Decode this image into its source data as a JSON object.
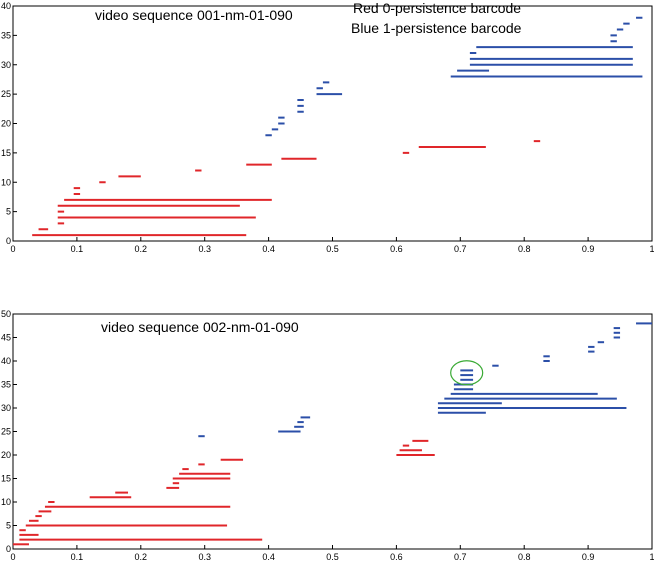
{
  "chart_data": [
    {
      "type": "barcode",
      "title": "video sequence 001-nm-01-090",
      "legend": [
        "Red  0-persistence barcode",
        "Blue 1-persistence barcode"
      ],
      "xlim": [
        0,
        1
      ],
      "ylim": [
        0,
        40
      ],
      "xticks": [
        0,
        0.1,
        0.2,
        0.3,
        0.4,
        0.5,
        0.6,
        0.7,
        0.8,
        0.9,
        1
      ],
      "yticks": [
        0,
        5,
        10,
        15,
        20,
        25,
        30,
        35,
        40
      ],
      "series": [
        {
          "name": "0-persistence",
          "color": "#e0262a",
          "bars": [
            {
              "y": 1,
              "start": 0.03,
              "end": 0.365
            },
            {
              "y": 2,
              "start": 0.04,
              "end": 0.055
            },
            {
              "y": 3,
              "start": 0.07,
              "end": 0.08
            },
            {
              "y": 4,
              "start": 0.07,
              "end": 0.38
            },
            {
              "y": 5,
              "start": 0.07,
              "end": 0.08
            },
            {
              "y": 6,
              "start": 0.07,
              "end": 0.355
            },
            {
              "y": 7,
              "start": 0.08,
              "end": 0.405
            },
            {
              "y": 8,
              "start": 0.095,
              "end": 0.105
            },
            {
              "y": 9,
              "start": 0.095,
              "end": 0.105
            },
            {
              "y": 10,
              "start": 0.135,
              "end": 0.145
            },
            {
              "y": 11,
              "start": 0.165,
              "end": 0.2
            },
            {
              "y": 12,
              "start": 0.285,
              "end": 0.295
            },
            {
              "y": 13,
              "start": 0.365,
              "end": 0.405
            },
            {
              "y": 14,
              "start": 0.42,
              "end": 0.475
            },
            {
              "y": 15,
              "start": 0.61,
              "end": 0.62
            },
            {
              "y": 16,
              "start": 0.635,
              "end": 0.74
            },
            {
              "y": 17,
              "start": 0.815,
              "end": 0.825
            }
          ]
        },
        {
          "name": "1-persistence",
          "color": "#2b4fa8",
          "bars": [
            {
              "y": 18,
              "start": 0.395,
              "end": 0.405
            },
            {
              "y": 19,
              "start": 0.405,
              "end": 0.415
            },
            {
              "y": 20,
              "start": 0.415,
              "end": 0.425
            },
            {
              "y": 21,
              "start": 0.415,
              "end": 0.425
            },
            {
              "y": 22,
              "start": 0.445,
              "end": 0.455
            },
            {
              "y": 23,
              "start": 0.445,
              "end": 0.455
            },
            {
              "y": 24,
              "start": 0.445,
              "end": 0.455
            },
            {
              "y": 25,
              "start": 0.475,
              "end": 0.515
            },
            {
              "y": 26,
              "start": 0.475,
              "end": 0.485
            },
            {
              "y": 27,
              "start": 0.485,
              "end": 0.495
            },
            {
              "y": 28,
              "start": 0.685,
              "end": 0.985
            },
            {
              "y": 29,
              "start": 0.695,
              "end": 0.745
            },
            {
              "y": 30,
              "start": 0.715,
              "end": 0.97
            },
            {
              "y": 31,
              "start": 0.715,
              "end": 0.97
            },
            {
              "y": 32,
              "start": 0.715,
              "end": 0.725
            },
            {
              "y": 33,
              "start": 0.725,
              "end": 0.97
            },
            {
              "y": 34,
              "start": 0.935,
              "end": 0.945
            },
            {
              "y": 35,
              "start": 0.935,
              "end": 0.945
            },
            {
              "y": 36,
              "start": 0.945,
              "end": 0.955
            },
            {
              "y": 37,
              "start": 0.955,
              "end": 0.965
            },
            {
              "y": 38,
              "start": 0.975,
              "end": 0.985
            }
          ]
        }
      ]
    },
    {
      "type": "barcode",
      "title": "video sequence 002-nm-01-090",
      "xlim": [
        0,
        1
      ],
      "ylim": [
        0,
        50
      ],
      "xticks": [
        0,
        0.1,
        0.2,
        0.3,
        0.4,
        0.5,
        0.6,
        0.7,
        0.8,
        0.9,
        1
      ],
      "yticks": [
        0,
        5,
        10,
        15,
        20,
        25,
        30,
        35,
        40,
        45,
        50
      ],
      "annotation": {
        "type": "circle",
        "color": "#3aaa35",
        "cx": 0.71,
        "cy": 37.5,
        "label": ""
      },
      "series": [
        {
          "name": "0-persistence",
          "color": "#e0262a",
          "bars": [
            {
              "y": 1,
              "start": 0.0,
              "end": 0.025
            },
            {
              "y": 2,
              "start": 0.01,
              "end": 0.39
            },
            {
              "y": 3,
              "start": 0.01,
              "end": 0.04
            },
            {
              "y": 4,
              "start": 0.01,
              "end": 0.02
            },
            {
              "y": 5,
              "start": 0.02,
              "end": 0.335
            },
            {
              "y": 6,
              "start": 0.025,
              "end": 0.04
            },
            {
              "y": 7,
              "start": 0.035,
              "end": 0.045
            },
            {
              "y": 8,
              "start": 0.04,
              "end": 0.06
            },
            {
              "y": 9,
              "start": 0.05,
              "end": 0.34
            },
            {
              "y": 10,
              "start": 0.055,
              "end": 0.065
            },
            {
              "y": 11,
              "start": 0.12,
              "end": 0.185
            },
            {
              "y": 12,
              "start": 0.16,
              "end": 0.18
            },
            {
              "y": 13,
              "start": 0.24,
              "end": 0.26
            },
            {
              "y": 14,
              "start": 0.25,
              "end": 0.26
            },
            {
              "y": 15,
              "start": 0.25,
              "end": 0.34
            },
            {
              "y": 16,
              "start": 0.26,
              "end": 0.34
            },
            {
              "y": 17,
              "start": 0.265,
              "end": 0.275
            },
            {
              "y": 18,
              "start": 0.29,
              "end": 0.3
            },
            {
              "y": 19,
              "start": 0.325,
              "end": 0.36
            },
            {
              "y": 20,
              "start": 0.6,
              "end": 0.66
            },
            {
              "y": 21,
              "start": 0.605,
              "end": 0.64
            },
            {
              "y": 22,
              "start": 0.61,
              "end": 0.62
            },
            {
              "y": 23,
              "start": 0.625,
              "end": 0.65
            }
          ]
        },
        {
          "name": "1-persistence",
          "color": "#2b4fa8",
          "bars": [
            {
              "y": 24,
              "start": 0.29,
              "end": 0.3
            },
            {
              "y": 25,
              "start": 0.415,
              "end": 0.45
            },
            {
              "y": 26,
              "start": 0.44,
              "end": 0.455
            },
            {
              "y": 27,
              "start": 0.445,
              "end": 0.455
            },
            {
              "y": 28,
              "start": 0.45,
              "end": 0.465
            },
            {
              "y": 29,
              "start": 0.665,
              "end": 0.74
            },
            {
              "y": 30,
              "start": 0.665,
              "end": 0.96
            },
            {
              "y": 31,
              "start": 0.665,
              "end": 0.765
            },
            {
              "y": 32,
              "start": 0.675,
              "end": 0.945
            },
            {
              "y": 33,
              "start": 0.685,
              "end": 0.915
            },
            {
              "y": 34,
              "start": 0.69,
              "end": 0.72
            },
            {
              "y": 35,
              "start": 0.69,
              "end": 0.72
            },
            {
              "y": 36,
              "start": 0.7,
              "end": 0.72
            },
            {
              "y": 37,
              "start": 0.7,
              "end": 0.72
            },
            {
              "y": 38,
              "start": 0.7,
              "end": 0.72
            },
            {
              "y": 39,
              "start": 0.75,
              "end": 0.76
            },
            {
              "y": 40,
              "start": 0.83,
              "end": 0.84
            },
            {
              "y": 41,
              "start": 0.83,
              "end": 0.84
            },
            {
              "y": 42,
              "start": 0.9,
              "end": 0.91
            },
            {
              "y": 43,
              "start": 0.9,
              "end": 0.91
            },
            {
              "y": 44,
              "start": 0.915,
              "end": 0.925
            },
            {
              "y": 45,
              "start": 0.94,
              "end": 0.95
            },
            {
              "y": 46,
              "start": 0.94,
              "end": 0.95
            },
            {
              "y": 47,
              "start": 0.94,
              "end": 0.95
            },
            {
              "y": 48,
              "start": 0.975,
              "end": 1.0
            }
          ]
        }
      ]
    }
  ]
}
